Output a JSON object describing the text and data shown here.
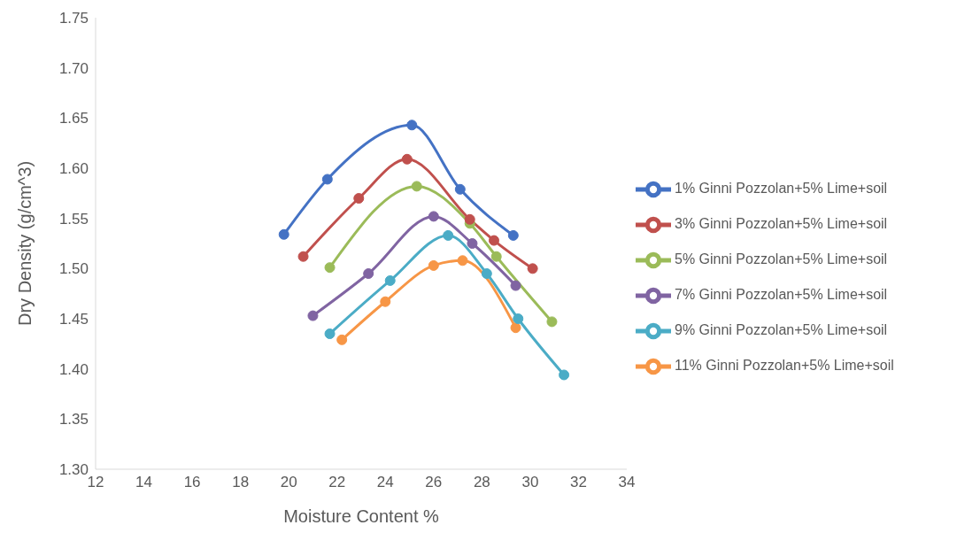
{
  "chart_data": {
    "type": "line",
    "xlabel": "Moisture Content %",
    "ylabel": "Dry Density (g/cm^3)",
    "xlim": [
      12,
      34
    ],
    "xticks": [
      12,
      14,
      16,
      18,
      20,
      22,
      24,
      26,
      28,
      30,
      32,
      34
    ],
    "ylim": [
      1.3,
      1.75
    ],
    "yticks": [
      {
        "value": 1.3,
        "label": "1.30"
      },
      {
        "value": 1.35,
        "label": "1.35"
      },
      {
        "value": 1.4,
        "label": "1.40"
      },
      {
        "value": 1.45,
        "label": "1.45"
      },
      {
        "value": 1.5,
        "label": "1.50"
      },
      {
        "value": 1.55,
        "label": "1.55"
      },
      {
        "value": 1.6,
        "label": "1.60"
      },
      {
        "value": 1.65,
        "label": "1.65"
      },
      {
        "value": 1.7,
        "label": "1.70"
      },
      {
        "value": 1.75,
        "label": "1.75"
      }
    ],
    "grid": false,
    "legend": "right",
    "marker": "circle",
    "line_style": "solid",
    "series": [
      {
        "name": "1% Ginni Pozzolan+5% Lime+soil",
        "color": "#4472c4",
        "x": [
          19.8,
          21.6,
          25.1,
          27.1,
          29.3
        ],
        "values": [
          1.534,
          1.589,
          1.643,
          1.579,
          1.533
        ]
      },
      {
        "name": "3% Ginni Pozzolan+5% Lime+soil",
        "color": "#c0504d",
        "x": [
          20.6,
          22.9,
          24.9,
          27.5,
          28.5,
          30.1
        ],
        "values": [
          1.512,
          1.57,
          1.609,
          1.549,
          1.528,
          1.5
        ]
      },
      {
        "name": "5% Ginni Pozzolan+5% Lime+soil",
        "color": "#9bbb59",
        "x": [
          21.7,
          25.3,
          27.5,
          28.6,
          30.9
        ],
        "values": [
          1.501,
          1.582,
          1.545,
          1.512,
          1.447
        ]
      },
      {
        "name": "7% Ginni Pozzolan+5% Lime+soil",
        "color": "#8064a2",
        "x": [
          21.0,
          23.3,
          26.0,
          27.6,
          29.4
        ],
        "values": [
          1.453,
          1.495,
          1.552,
          1.525,
          1.483
        ]
      },
      {
        "name": "9% Ginni Pozzolan+5% Lime+soil",
        "color": "#4bacc6",
        "x": [
          21.7,
          24.2,
          26.6,
          28.2,
          29.5,
          31.4
        ],
        "values": [
          1.435,
          1.488,
          1.533,
          1.495,
          1.45,
          1.394
        ]
      },
      {
        "name": "11% Ginni Pozzolan+5% Lime+soil",
        "color": "#f79646",
        "x": [
          22.2,
          24.0,
          26.0,
          27.2,
          29.4
        ],
        "values": [
          1.429,
          1.467,
          1.503,
          1.508,
          1.441
        ]
      }
    ]
  }
}
